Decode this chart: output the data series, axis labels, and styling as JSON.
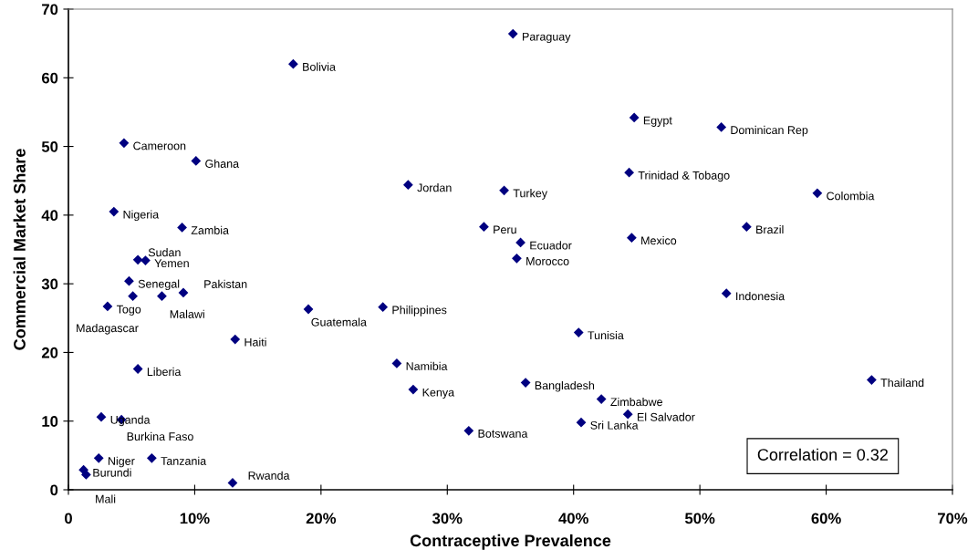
{
  "chart_data": {
    "type": "scatter",
    "xlabel": "Contraceptive Prevalence",
    "ylabel": "Commercial Market Share",
    "xlim": [
      0,
      70
    ],
    "ylim": [
      0,
      70
    ],
    "xticks": [
      0,
      {
        "value": 10,
        "label": "10%"
      },
      {
        "value": 20,
        "label": "20%"
      },
      {
        "value": 30,
        "label": "30%"
      },
      {
        "value": 40,
        "label": "40%"
      },
      {
        "value": 50,
        "label": "50%"
      },
      {
        "value": 60,
        "label": "60%"
      },
      {
        "value": 70,
        "label": "70%"
      }
    ],
    "yticks": [
      0,
      10,
      20,
      30,
      40,
      50,
      60,
      70
    ],
    "grid": false,
    "marker": "diamond",
    "series": [
      {
        "color": "#000080",
        "x": [
          35.2,
          17.8,
          44.8,
          51.7,
          4.4,
          10.1,
          44.4,
          26.9,
          34.5,
          59.3,
          3.6,
          9.0,
          32.9,
          53.7,
          35.8,
          44.6,
          5.5,
          6.1,
          35.5,
          4.8,
          5.1,
          7.4,
          9.1,
          3.1,
          19.0,
          24.9,
          52.1,
          13.2,
          40.4,
          5.5,
          26.0,
          36.2,
          63.6,
          27.3,
          42.2,
          44.3,
          2.6,
          4.2,
          40.6,
          31.7,
          2.4,
          6.6,
          1.2,
          1.4,
          13.0
        ],
        "values": [
          66.4,
          62.0,
          54.2,
          52.8,
          50.5,
          47.9,
          46.2,
          44.4,
          43.6,
          43.2,
          40.5,
          38.2,
          38.3,
          38.3,
          36.0,
          36.7,
          33.5,
          33.4,
          33.7,
          30.4,
          28.2,
          28.2,
          28.7,
          26.7,
          26.3,
          26.6,
          28.6,
          21.9,
          22.9,
          17.6,
          18.4,
          15.6,
          16.0,
          14.6,
          13.2,
          11.0,
          10.6,
          10.2,
          9.8,
          8.6,
          4.6,
          4.6,
          2.9,
          2.2,
          1.0
        ]
      }
    ],
    "annotations": [
      {
        "text": "Paraguay",
        "x": 35.2,
        "y": 66.4
      },
      {
        "text": "Bolivia",
        "x": 17.8,
        "y": 62.0
      },
      {
        "text": "Egypt",
        "x": 44.8,
        "y": 54.2
      },
      {
        "text": "Dominican Rep",
        "x": 51.7,
        "y": 52.8
      },
      {
        "text": "Cameroon",
        "x": 4.4,
        "y": 50.5
      },
      {
        "text": "Ghana",
        "x": 10.1,
        "y": 47.9
      },
      {
        "text": "Trinidad & Tobago",
        "x": 44.4,
        "y": 46.2
      },
      {
        "text": "Jordan",
        "x": 26.9,
        "y": 44.4
      },
      {
        "text": "Turkey",
        "x": 34.5,
        "y": 43.6
      },
      {
        "text": "Colombia",
        "x": 59.3,
        "y": 43.2
      },
      {
        "text": "Nigeria",
        "x": 3.6,
        "y": 40.5
      },
      {
        "text": "Zambia",
        "x": 9.0,
        "y": 38.2
      },
      {
        "text": "Peru",
        "x": 32.9,
        "y": 38.3
      },
      {
        "text": "Brazil",
        "x": 53.7,
        "y": 38.3
      },
      {
        "text": "Ecuador",
        "x": 35.8,
        "y": 36.0
      },
      {
        "text": "Mexico",
        "x": 44.6,
        "y": 36.7
      },
      {
        "text": "Sudan",
        "x": 5.5,
        "y": 33.5
      },
      {
        "text": "Yemen",
        "x": 6.1,
        "y": 33.4
      },
      {
        "text": "Morocco",
        "x": 35.5,
        "y": 33.7
      },
      {
        "text": "Senegal",
        "x": 4.8,
        "y": 30.4
      },
      {
        "text": "Madagascar",
        "x": 5.1,
        "y": 28.2
      },
      {
        "text": "Malawi",
        "x": 7.4,
        "y": 28.2
      },
      {
        "text": "Pakistan",
        "x": 9.1,
        "y": 28.7
      },
      {
        "text": "Togo",
        "x": 3.1,
        "y": 26.7
      },
      {
        "text": "Guatemala",
        "x": 19.0,
        "y": 26.3
      },
      {
        "text": "Philippines",
        "x": 24.9,
        "y": 26.6
      },
      {
        "text": "Indonesia",
        "x": 52.1,
        "y": 28.6
      },
      {
        "text": "Haiti",
        "x": 13.2,
        "y": 21.9
      },
      {
        "text": "Tunisia",
        "x": 40.4,
        "y": 22.9
      },
      {
        "text": "Liberia",
        "x": 5.5,
        "y": 17.6
      },
      {
        "text": "Namibia",
        "x": 26.0,
        "y": 18.4
      },
      {
        "text": "Bangladesh",
        "x": 36.2,
        "y": 15.6
      },
      {
        "text": "Thailand",
        "x": 63.6,
        "y": 16.0
      },
      {
        "text": "Kenya",
        "x": 27.3,
        "y": 14.6
      },
      {
        "text": "Zimbabwe",
        "x": 42.2,
        "y": 13.2
      },
      {
        "text": "El Salvador",
        "x": 44.3,
        "y": 11.0
      },
      {
        "text": "Uganda",
        "x": 2.6,
        "y": 10.6
      },
      {
        "text": "Burkina Faso",
        "x": 4.2,
        "y": 10.2
      },
      {
        "text": "Sri Lanka",
        "x": 40.6,
        "y": 9.8
      },
      {
        "text": "Botswana",
        "x": 31.7,
        "y": 8.6
      },
      {
        "text": "Niger",
        "x": 2.4,
        "y": 4.6
      },
      {
        "text": "Tanzania",
        "x": 6.6,
        "y": 4.6
      },
      {
        "text": "Burundi",
        "x": 1.2,
        "y": 2.9
      },
      {
        "text": "Mali",
        "x": 1.4,
        "y": 2.2
      },
      {
        "text": "Rwanda",
        "x": 13.0,
        "y": 1.0
      },
      "Correlation = 0.32"
    ]
  }
}
